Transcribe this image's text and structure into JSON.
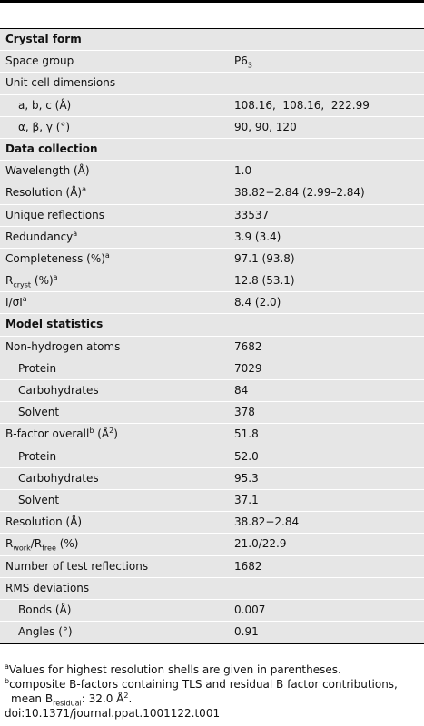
{
  "table": {
    "sections": [
      {
        "title": "Crystal form",
        "rows": [
          {
            "label": [
              "Space group"
            ],
            "value": [
              "P6",
              {
                "sub": "3"
              }
            ]
          },
          {
            "label": [
              "Unit cell dimensions"
            ],
            "children": [
              {
                "label": [
                  "a, b, c (Å)"
                ],
                "value": [
                  "108.16,  108.16,  222.99"
                ]
              },
              {
                "label": [
                  "α, β, γ (°)"
                ],
                "value": [
                  "90, 90, 120"
                ]
              }
            ]
          }
        ]
      },
      {
        "title": "Data collection",
        "rows": [
          {
            "label": [
              "Wavelength (Å)"
            ],
            "value": [
              "1.0"
            ]
          },
          {
            "label": [
              "Resolution (Å)",
              {
                "sup": "a"
              }
            ],
            "value": [
              "38.82−2.84 (2.99–2.84)"
            ]
          },
          {
            "label": [
              "Unique reflections"
            ],
            "value": [
              "33537"
            ]
          },
          {
            "label": [
              "Redundancy",
              {
                "sup": "a"
              }
            ],
            "value": [
              "3.9 (3.4)"
            ]
          },
          {
            "label": [
              "Completeness (%)",
              {
                "sup": "a"
              }
            ],
            "value": [
              "97.1 (93.8)"
            ]
          },
          {
            "label": [
              "R",
              {
                "sub": "cryst"
              },
              " (%)",
              {
                "sup": "a"
              }
            ],
            "value": [
              "12.8 (53.1)"
            ]
          },
          {
            "label": [
              "I/σI",
              {
                "sup": "a"
              }
            ],
            "value": [
              "8.4 (2.0)"
            ]
          }
        ]
      },
      {
        "title": "Model statistics",
        "rows": [
          {
            "label": [
              "Non-hydrogen atoms"
            ],
            "value": [
              "7682"
            ],
            "children": [
              {
                "label": [
                  "Protein"
                ],
                "value": [
                  "7029"
                ]
              },
              {
                "label": [
                  "Carbohydrates"
                ],
                "value": [
                  "84"
                ]
              },
              {
                "label": [
                  "Solvent"
                ],
                "value": [
                  "378"
                ]
              }
            ]
          },
          {
            "label": [
              "B-factor overall",
              {
                "sup": "b"
              },
              " (Å",
              {
                "sup": "2"
              },
              ")"
            ],
            "value": [
              "51.8"
            ],
            "children": [
              {
                "label": [
                  "Protein"
                ],
                "value": [
                  "52.0"
                ]
              },
              {
                "label": [
                  "Carbohydrates"
                ],
                "value": [
                  "95.3"
                ]
              },
              {
                "label": [
                  "Solvent"
                ],
                "value": [
                  "37.1"
                ]
              }
            ]
          },
          {
            "label": [
              "Resolution (Å)"
            ],
            "value": [
              "38.82−2.84"
            ]
          },
          {
            "label": [
              "R",
              {
                "sub": "work"
              },
              "/R",
              {
                "sub": "free"
              },
              " (%)"
            ],
            "value": [
              "21.0/22.9"
            ]
          },
          {
            "label": [
              "Number of test reflections"
            ],
            "value": [
              "1682"
            ]
          },
          {
            "label": [
              "RMS deviations"
            ],
            "children": [
              {
                "label": [
                  "Bonds (Å)"
                ],
                "value": [
                  "0.007"
                ]
              },
              {
                "label": [
                  "Angles (°)"
                ],
                "value": [
                  "0.91"
                ]
              }
            ]
          }
        ]
      }
    ],
    "footnotes": [
      [
        {
          "sup": "a"
        },
        "Values for highest resolution shells are given in parentheses."
      ],
      [
        {
          "sup": "b"
        },
        "composite B-factors containing TLS and residual B factor contributions, mean B",
        {
          "sub": "residual"
        },
        ": 32.0 Å",
        {
          "sup": "2"
        },
        "."
      ]
    ],
    "doi": "doi:10.1371/journal.ppat.1001122.t001"
  }
}
